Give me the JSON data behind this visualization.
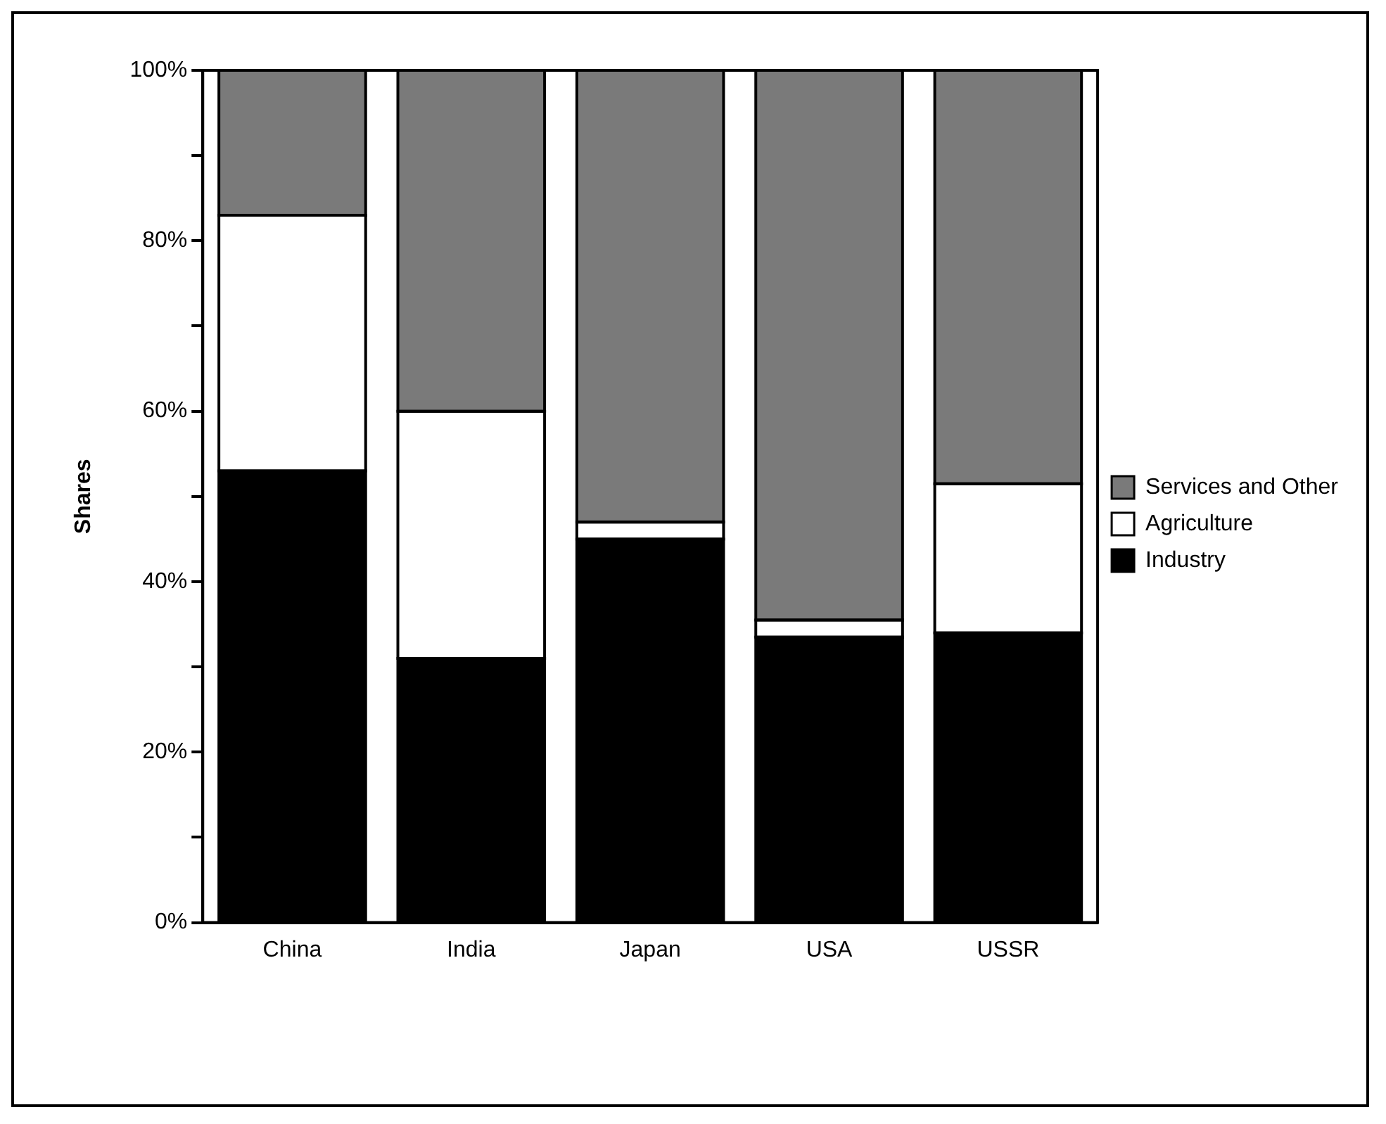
{
  "chart_data": {
    "type": "bar",
    "stacked": true,
    "ylabel": "Shares",
    "categories": [
      "China",
      "India",
      "Japan",
      "USA",
      "USSR"
    ],
    "series": [
      {
        "name": "Industry",
        "color": "#000000",
        "values": [
          53,
          31,
          45,
          33.5,
          34
        ]
      },
      {
        "name": "Agriculture",
        "color": "#ffffff",
        "values": [
          30,
          29,
          2,
          2,
          17.5
        ]
      },
      {
        "name": "Services and Other",
        "color": "#7a7a7a",
        "values": [
          17,
          40,
          53,
          64.5,
          48.5
        ]
      }
    ],
    "ylim": [
      0,
      100
    ],
    "yticks": [
      {
        "value": 0,
        "label": "0%"
      },
      {
        "value": 10,
        "label": null
      },
      {
        "value": 20,
        "label": "20%"
      },
      {
        "value": 30,
        "label": null
      },
      {
        "value": 40,
        "label": "40%"
      },
      {
        "value": 50,
        "label": null
      },
      {
        "value": 60,
        "label": "60%"
      },
      {
        "value": 70,
        "label": null
      },
      {
        "value": 80,
        "label": "80%"
      },
      {
        "value": 90,
        "label": null
      },
      {
        "value": 100,
        "label": "100%"
      }
    ],
    "grid": false,
    "legend": "right"
  }
}
